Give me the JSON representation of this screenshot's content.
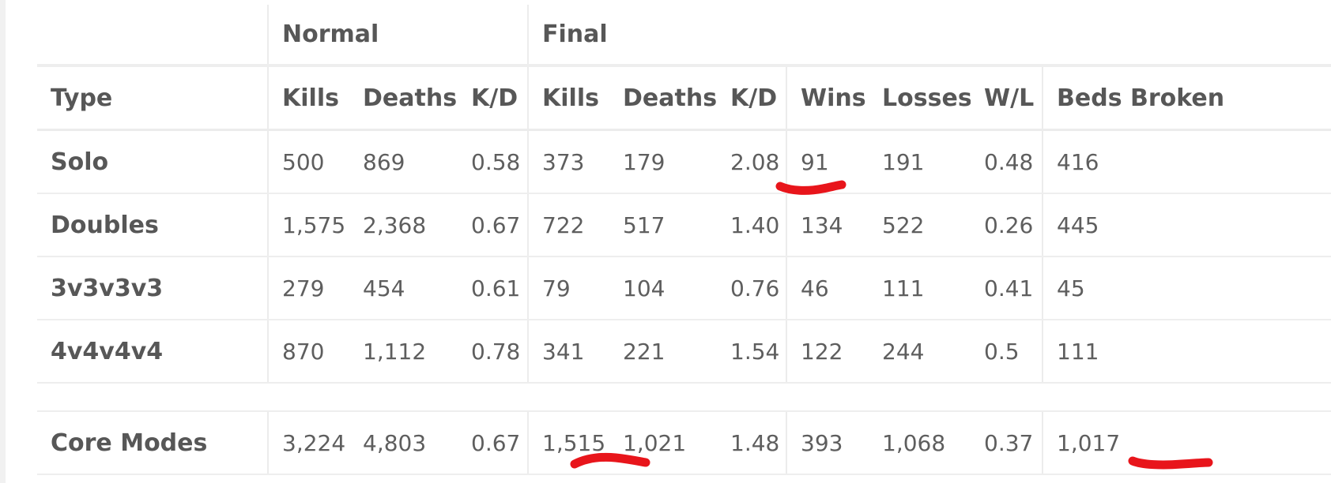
{
  "table": {
    "group_headers": {
      "normal": "Normal",
      "final": "Final"
    },
    "columns": {
      "type": "Type",
      "normal_kills": "Kills",
      "normal_deaths": "Deaths",
      "normal_kd": "K/D",
      "final_kills": "Kills",
      "final_deaths": "Deaths",
      "final_kd": "K/D",
      "wins": "Wins",
      "losses": "Losses",
      "wl": "W/L",
      "beds_broken": "Beds Broken"
    },
    "rows": [
      {
        "type": "Solo",
        "normal_kills": "500",
        "normal_deaths": "869",
        "normal_kd": "0.58",
        "final_kills": "373",
        "final_deaths": "179",
        "final_kd": "2.08",
        "wins": "91",
        "losses": "191",
        "wl": "0.48",
        "beds_broken": "416"
      },
      {
        "type": "Doubles",
        "normal_kills": "1,575",
        "normal_deaths": "2,368",
        "normal_kd": "0.67",
        "final_kills": "722",
        "final_deaths": "517",
        "final_kd": "1.40",
        "wins": "134",
        "losses": "522",
        "wl": "0.26",
        "beds_broken": "445"
      },
      {
        "type": "3v3v3v3",
        "normal_kills": "279",
        "normal_deaths": "454",
        "normal_kd": "0.61",
        "final_kills": "79",
        "final_deaths": "104",
        "final_kd": "0.76",
        "wins": "46",
        "losses": "111",
        "wl": "0.41",
        "beds_broken": "45"
      },
      {
        "type": "4v4v4v4",
        "normal_kills": "870",
        "normal_deaths": "1,112",
        "normal_kd": "0.78",
        "final_kills": "341",
        "final_deaths": "221",
        "final_kd": "1.54",
        "wins": "122",
        "losses": "244",
        "wl": "0.5",
        "beds_broken": "111"
      }
    ],
    "total": {
      "type": "Core Modes",
      "normal_kills": "3,224",
      "normal_deaths": "4,803",
      "normal_kd": "0.67",
      "final_kills": "1,515",
      "final_deaths": "1,021",
      "final_kd": "1.48",
      "wins": "393",
      "losses": "1,068",
      "wl": "0.37",
      "beds_broken": "1,017"
    }
  },
  "annotations": {
    "color": "#e8151b"
  }
}
